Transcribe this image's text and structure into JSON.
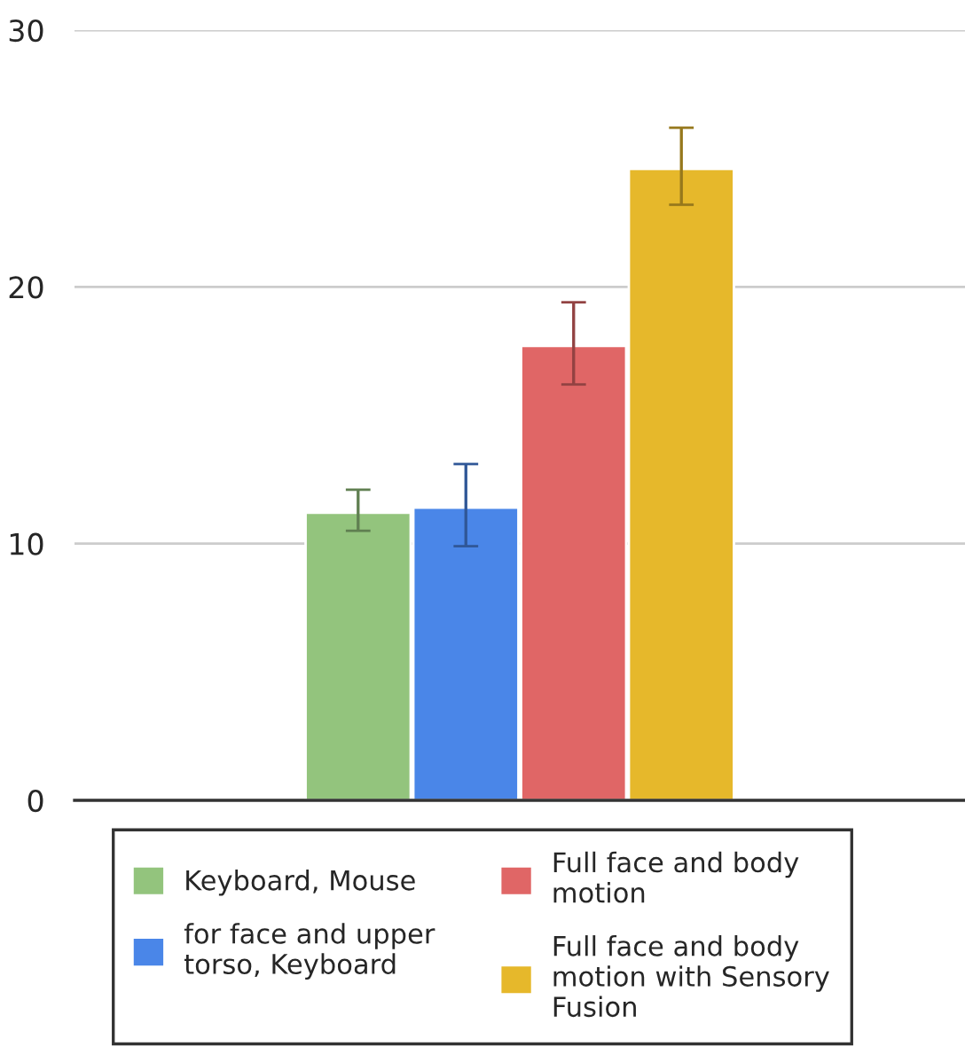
{
  "chart_data": {
    "type": "bar",
    "categories": [
      null
    ],
    "series": [
      {
        "name": "Keyboard, Mouse",
        "color": "#93c47d",
        "values": [
          11.2
        ],
        "errors": [
          [
            10.5,
            12.1
          ]
        ]
      },
      {
        "name": "for face and upper torso, Keyboard",
        "color": "#4a86e8",
        "values": [
          11.4
        ],
        "errors": [
          [
            9.9,
            13.1
          ]
        ]
      },
      {
        "name": "Full face and body motion",
        "color": "#e06666",
        "values": [
          17.7
        ],
        "errors": [
          [
            16.2,
            19.4
          ]
        ]
      },
      {
        "name": "Full face and body motion with Sensory Fusion",
        "color": "#e6b82b",
        "values": [
          24.6
        ],
        "errors": [
          [
            23.2,
            26.2
          ]
        ]
      }
    ],
    "ylim": [
      0,
      30
    ],
    "yticks": [
      0,
      10,
      20,
      30
    ],
    "grid": "y",
    "legend": "bottom",
    "tick_labels": "y"
  }
}
